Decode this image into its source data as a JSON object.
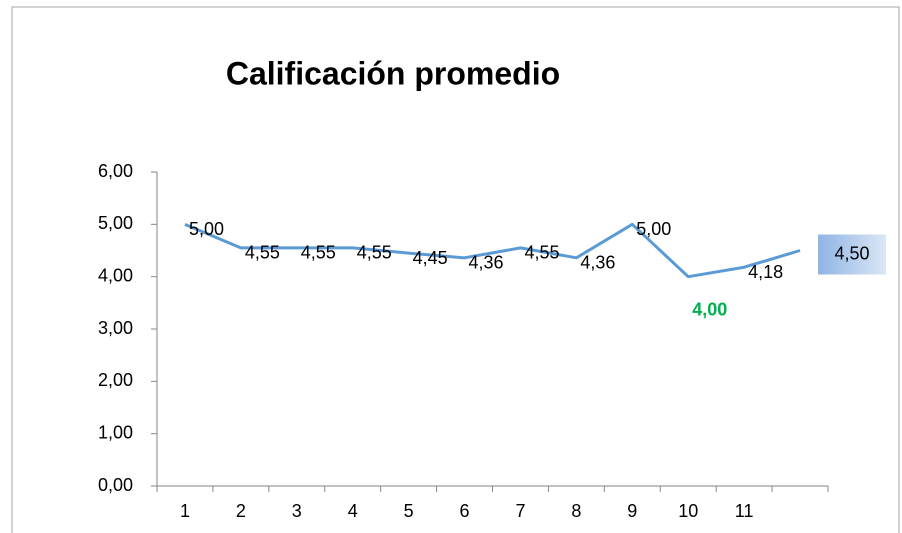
{
  "chart_data": {
    "type": "line",
    "title": "Calificación promedio",
    "categories": [
      "1",
      "2",
      "3",
      "4",
      "5",
      "6",
      "7",
      "8",
      "9",
      "10",
      "11",
      null
    ],
    "series": [
      {
        "name": "Calificación promedio",
        "color": "#5b9bd5",
        "values": [
          5.0,
          4.55,
          4.55,
          4.55,
          4.45,
          4.36,
          4.55,
          4.36,
          5.0,
          4.0,
          4.18,
          4.5
        ],
        "value_labels": [
          "5,00",
          "4,55",
          "4,55",
          "4,55",
          "4,45",
          "4,36",
          "4,55",
          "4,36",
          "5,00",
          "4,00",
          "4,18",
          "4,50"
        ]
      }
    ],
    "ylim": [
      0,
      6
    ],
    "yticks": [
      {
        "value": 0,
        "label": "0,00"
      },
      {
        "value": 1,
        "label": "1,00"
      },
      {
        "value": 2,
        "label": "2,00"
      },
      {
        "value": 3,
        "label": "3,00"
      },
      {
        "value": 4,
        "label": "4,00"
      },
      {
        "value": 5,
        "label": "5,00"
      },
      {
        "value": 6,
        "label": "6,00"
      }
    ],
    "grid": false
  }
}
